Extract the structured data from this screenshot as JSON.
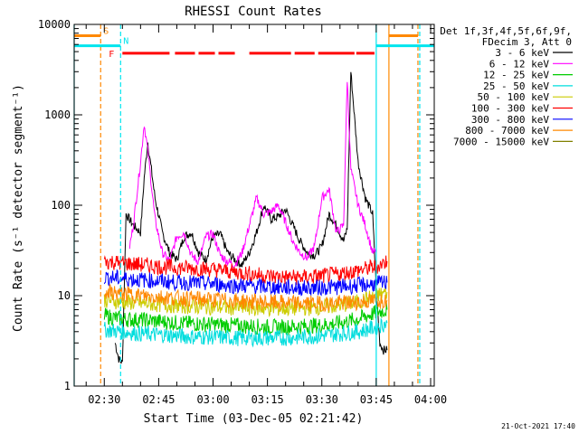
{
  "chart_data": {
    "type": "line",
    "title": "RHESSI Count Rates",
    "xlabel": "Start Time (03-Dec-05 02:21:42)",
    "ylabel": "Count Rate (s⁻¹ detector segment⁻¹)",
    "yscale": "log",
    "ylim": [
      1,
      10000
    ],
    "xlim": [
      "02:21:42",
      "04:01:00"
    ],
    "x_tick_labels": [
      "02:30",
      "02:45",
      "03:00",
      "03:15",
      "03:30",
      "03:45",
      "04:00"
    ],
    "y_tick_labels": [
      "1",
      "10",
      "100",
      "1000",
      "10000"
    ],
    "legend_placement": "right",
    "legend_header": [
      "Det 1f,3f,4f,5f,6f,9f,",
      "FDecim 3, Att 0"
    ],
    "timestamp": "21-Oct-2021 17:40",
    "series": [
      {
        "name": "3 - 6 keV",
        "color": "#000000",
        "x": [
          "02:33:00",
          "02:34:00",
          "02:35:00",
          "02:36:00",
          "02:38:00",
          "02:40:00",
          "02:41:00",
          "02:42:00",
          "02:44:00",
          "02:46:00",
          "02:48:00",
          "02:50:00",
          "02:52:00",
          "02:54:00",
          "02:56:00",
          "02:58:00",
          "03:00:00",
          "03:02:00",
          "03:04:00",
          "03:06:00",
          "03:08:00",
          "03:10:00",
          "03:12:00",
          "03:14:00",
          "03:16:00",
          "03:18:00",
          "03:20:00",
          "03:22:00",
          "03:24:00",
          "03:26:00",
          "03:28:00",
          "03:30:00",
          "03:32:00",
          "03:34:00",
          "03:36:00",
          "03:37:00",
          "03:38:00",
          "03:40:00",
          "03:42:00",
          "03:44:00",
          "03:45:00",
          "03:46:00",
          "03:47:00",
          "03:48:00"
        ],
        "y": [
          3,
          2,
          1.8,
          80,
          60,
          50,
          200,
          500,
          120,
          50,
          30,
          25,
          45,
          50,
          30,
          25,
          45,
          48,
          30,
          25,
          22,
          30,
          50,
          100,
          70,
          75,
          90,
          60,
          40,
          30,
          28,
          35,
          80,
          60,
          40,
          55,
          3000,
          300,
          120,
          80,
          12,
          3,
          2.5,
          2.5
        ]
      },
      {
        "name": "6 - 12 keV",
        "color": "#ff00ff",
        "x": [
          "02:37:00",
          "02:38:00",
          "02:40:00",
          "02:41:00",
          "02:42:00",
          "02:44:00",
          "02:46:00",
          "02:48:00",
          "02:50:00",
          "02:52:00",
          "02:54:00",
          "02:56:00",
          "02:58:00",
          "03:00:00",
          "03:02:00",
          "03:04:00",
          "03:06:00",
          "03:08:00",
          "03:10:00",
          "03:12:00",
          "03:14:00",
          "03:16:00",
          "03:18:00",
          "03:20:00",
          "03:22:00",
          "03:24:00",
          "03:26:00",
          "03:28:00",
          "03:30:00",
          "03:32:00",
          "03:34:00",
          "03:36:00",
          "03:37:00",
          "03:38:00",
          "03:40:00",
          "03:42:00",
          "03:44:00",
          "03:45:00"
        ],
        "y": [
          35,
          60,
          300,
          800,
          400,
          70,
          30,
          24,
          45,
          50,
          28,
          24,
          45,
          48,
          28,
          24,
          22,
          30,
          60,
          120,
          80,
          85,
          100,
          65,
          40,
          30,
          26,
          35,
          120,
          150,
          50,
          60,
          2500,
          250,
          100,
          60,
          30,
          30
        ]
      },
      {
        "name": "12 - 25 keV",
        "color": "#00cc00",
        "x": [
          "02:30:00",
          "02:35:00",
          "02:40:00",
          "02:45:00",
          "02:50:00",
          "02:55:00",
          "03:00:00",
          "03:05:00",
          "03:10:00",
          "03:15:00",
          "03:20:00",
          "03:25:00",
          "03:30:00",
          "03:35:00",
          "03:40:00",
          "03:45:00",
          "03:48:00"
        ],
        "y": [
          6,
          5.5,
          5.4,
          5.2,
          5,
          4.9,
          4.8,
          4.7,
          4.6,
          4.5,
          4.5,
          4.6,
          4.7,
          5,
          5.5,
          6.5,
          7
        ]
      },
      {
        "name": "25 - 50 keV",
        "color": "#00dddd",
        "x": [
          "02:30:00",
          "02:35:00",
          "02:40:00",
          "02:45:00",
          "02:50:00",
          "02:55:00",
          "03:00:00",
          "03:05:00",
          "03:10:00",
          "03:15:00",
          "03:20:00",
          "03:25:00",
          "03:30:00",
          "03:35:00",
          "03:40:00",
          "03:45:00",
          "03:48:00"
        ],
        "y": [
          4.2,
          4,
          3.8,
          3.7,
          3.6,
          3.5,
          3.5,
          3.4,
          3.4,
          3.4,
          3.4,
          3.5,
          3.6,
          3.8,
          4,
          4.5,
          5
        ]
      },
      {
        "name": "50 - 100 keV",
        "color": "#cccc00",
        "x": [
          "02:30:00",
          "02:35:00",
          "02:40:00",
          "02:45:00",
          "02:50:00",
          "02:55:00",
          "03:00:00",
          "03:05:00",
          "03:10:00",
          "03:15:00",
          "03:20:00",
          "03:25:00",
          "03:30:00",
          "03:35:00",
          "03:40:00",
          "03:45:00",
          "03:48:00"
        ],
        "y": [
          9,
          8.5,
          8.2,
          8,
          7.8,
          7.6,
          7.5,
          7.4,
          7.3,
          7.2,
          7.2,
          7.3,
          7.5,
          7.8,
          8.5,
          10,
          11
        ]
      },
      {
        "name": "100 - 300 keV",
        "color": "#ff0000",
        "x": [
          "02:30:00",
          "02:35:00",
          "02:40:00",
          "02:45:00",
          "02:50:00",
          "02:55:00",
          "03:00:00",
          "03:05:00",
          "03:10:00",
          "03:15:00",
          "03:20:00",
          "03:25:00",
          "03:30:00",
          "03:35:00",
          "03:40:00",
          "03:45:00",
          "03:48:00"
        ],
        "y": [
          24,
          23,
          22,
          21,
          20.5,
          20,
          19.5,
          18.5,
          17.5,
          16.5,
          16,
          16,
          16.5,
          17.5,
          19,
          21,
          24
        ]
      },
      {
        "name": "300 - 800 keV",
        "color": "#0000ff",
        "x": [
          "02:30:00",
          "02:35:00",
          "02:40:00",
          "02:45:00",
          "02:50:00",
          "02:55:00",
          "03:00:00",
          "03:05:00",
          "03:10:00",
          "03:15:00",
          "03:20:00",
          "03:25:00",
          "03:30:00",
          "03:35:00",
          "03:40:00",
          "03:45:00",
          "03:48:00"
        ],
        "y": [
          16,
          15.5,
          15,
          14.5,
          14,
          13.8,
          13.5,
          13,
          12.8,
          12.5,
          12.3,
          12.2,
          12.3,
          12.5,
          13,
          13.5,
          14
        ]
      },
      {
        "name": "800 - 7000 keV",
        "color": "#ff8800",
        "x": [
          "02:30:00",
          "02:35:00",
          "02:40:00",
          "02:45:00",
          "02:50:00",
          "02:55:00",
          "03:00:00",
          "03:05:00",
          "03:10:00",
          "03:15:00",
          "03:20:00",
          "03:25:00",
          "03:30:00",
          "03:35:00",
          "03:40:00",
          "03:45:00",
          "03:48:00"
        ],
        "y": [
          11,
          10.5,
          10,
          9.7,
          9.4,
          9.2,
          9,
          8.8,
          8.6,
          8.4,
          8.3,
          8.2,
          8.2,
          8.3,
          8.5,
          8.8,
          9
        ]
      },
      {
        "name": "7000 - 15000 keV",
        "color": "#808000",
        "x": [],
        "y": []
      }
    ],
    "attenuator_bars": [
      {
        "label": "S",
        "color": "#ff8800",
        "start": "02:21:42",
        "end": "02:29:00",
        "y": 7500
      },
      {
        "label": "",
        "color": "#ff8800",
        "start": "03:48:30",
        "end": "03:56:30",
        "y": 7500
      },
      {
        "label": "N",
        "color": "#00e5ee",
        "start": "02:21:42",
        "end": "02:34:30",
        "y": 5800
      },
      {
        "label": "",
        "color": "#00e5ee",
        "start": "03:45:00",
        "end": "04:01:00",
        "y": 5800
      }
    ],
    "flare_bars": {
      "label": "F",
      "color": "#ff0000",
      "y": 4800,
      "segments": [
        [
          "02:35:00",
          "02:48:00"
        ],
        [
          "02:49:30",
          "02:55:00"
        ],
        [
          "02:56:00",
          "03:00:30"
        ],
        [
          "03:01:30",
          "03:06:00"
        ],
        [
          "03:10:00",
          "03:21:30"
        ],
        [
          "03:22:30",
          "03:28:00"
        ],
        [
          "03:29:00",
          "03:39:00"
        ],
        [
          "03:39:30",
          "03:44:30"
        ]
      ]
    },
    "vertical_markers": [
      {
        "time": "02:21:42",
        "color": "#00e5ee",
        "style": "solid"
      },
      {
        "time": "02:29:00",
        "color": "#ff8800",
        "style": "dashed"
      },
      {
        "time": "02:34:30",
        "color": "#00e5ee",
        "style": "dashed"
      },
      {
        "time": "03:45:00",
        "color": "#00e5ee",
        "style": "solid"
      },
      {
        "time": "03:48:30",
        "color": "#ff8800",
        "style": "solid"
      },
      {
        "time": "03:56:30",
        "color": "#ff8800",
        "style": "dashed"
      },
      {
        "time": "03:57:00",
        "color": "#00e5ee",
        "style": "dashed"
      }
    ]
  }
}
